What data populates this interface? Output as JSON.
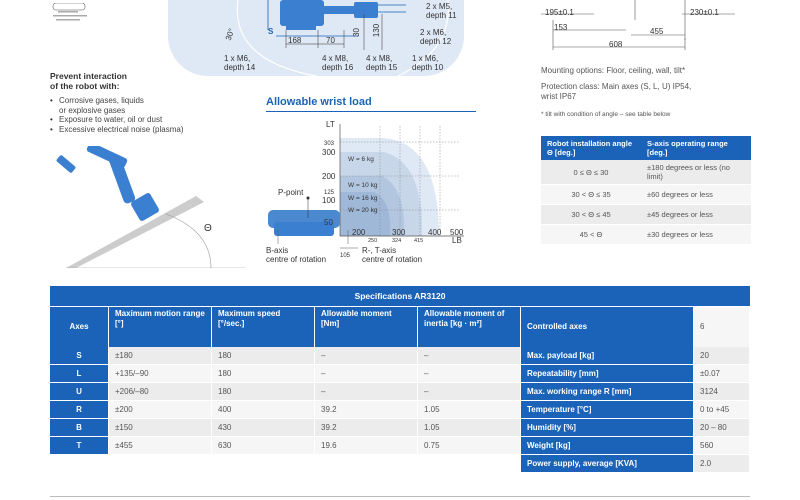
{
  "top_diagram": {
    "labels": [
      "2 x M5,",
      "depth 11",
      "2 x M6,",
      "depth 12",
      "1 x M6,",
      "depth 10",
      "4 x M8,",
      "depth 15",
      "4 x M8,",
      "depth 16",
      "1 x M6,",
      "depth 14"
    ],
    "dims": [
      "168",
      "70",
      "30",
      "130",
      "30°",
      "S"
    ]
  },
  "dims_right": [
    "195±0.1",
    "230±0.1",
    "153",
    "455",
    "608"
  ],
  "prevent": {
    "title_line1": "Prevent interaction",
    "title_line2": "of the robot with:",
    "items": [
      "Corrosive gases, liquids",
      "or explosive gases",
      "Exposure to water, oil or dust",
      "Excessive electrical noise (plasma)"
    ]
  },
  "theta_label": "Θ",
  "wrist": {
    "title": "Allowable wrist load",
    "lt_label": "LT",
    "y_ticks": [
      "303",
      "300",
      "200",
      "125",
      "100",
      "50"
    ],
    "x_ticks": [
      "200",
      "300",
      "400",
      "500"
    ],
    "x_sub_ticks": [
      "250",
      "324",
      "415"
    ],
    "lb_label": "LB",
    "weights": [
      "W = 6 kg",
      "W = 10 kg",
      "W = 16 kg",
      "W = 20 kg"
    ],
    "p_point": "P-point",
    "b_axis_line1": "B-axis",
    "b_axis_line2": "centre of rotation",
    "rt_axis_line1": "R-, T-axis",
    "rt_axis_line2": "centre of rotation",
    "dim_105": "105"
  },
  "mounting": {
    "options": "Mounting options: Floor, ceiling, wall, tilt*",
    "protection_line1": "Protection class: Main axes (S, L, U) IP54,",
    "protection_line2": "wrist IP67",
    "footnote": "* tilt with condition of angle – see table below"
  },
  "angle_table": {
    "headers": [
      "Robot installation angle Θ [deg.]",
      "S-axis operating range [deg.]"
    ],
    "rows": [
      [
        "0 ≤ Θ ≤ 30",
        "±180 degrees or less (no limit)"
      ],
      [
        "30 < Θ ≤ 35",
        "±60 degrees or less"
      ],
      [
        "30 < Θ ≤ 45",
        "±45 degrees or less"
      ],
      [
        "45 < Θ",
        "±30 degrees or less"
      ]
    ]
  },
  "specs": {
    "title": "Specifications AR3120",
    "headers": [
      "Axes",
      "Maximum motion range [°]",
      "Maximum speed [°/sec.]",
      "Allowable moment [Nm]",
      "Allowable moment of inertia [kg · m²]",
      "Controlled axes"
    ],
    "controlled_axes_value": "6",
    "rows": [
      {
        "axis": "S",
        "range": "±180",
        "speed": "180",
        "moment": "–",
        "inertia": "–",
        "label": "Max. payload [kg]",
        "value": "20"
      },
      {
        "axis": "L",
        "range": "+135/–90",
        "speed": "180",
        "moment": "–",
        "inertia": "–",
        "label": "Repeatability [mm]",
        "value": "±0.07"
      },
      {
        "axis": "U",
        "range": "+206/–80",
        "speed": "180",
        "moment": "–",
        "inertia": "–",
        "label": "Max. working range R [mm]",
        "value": "3124"
      },
      {
        "axis": "R",
        "range": "±200",
        "speed": "400",
        "moment": "39.2",
        "inertia": "1.05",
        "label": "Temperature [°C]",
        "value": "0 to +45"
      },
      {
        "axis": "B",
        "range": "±150",
        "speed": "430",
        "moment": "39.2",
        "inertia": "1.05",
        "label": "Humidity [%]",
        "value": "20 – 80"
      },
      {
        "axis": "T",
        "range": "±455",
        "speed": "630",
        "moment": "19.6",
        "inertia": "0.75",
        "label": "Weight [kg]",
        "value": "560"
      }
    ],
    "extra_row": {
      "label": "Power supply, average [KVA]",
      "value": "2.0"
    }
  },
  "colors": {
    "accent": "#1a63b8",
    "panel": "#dfe8f5",
    "row_grey": "#ececec"
  }
}
